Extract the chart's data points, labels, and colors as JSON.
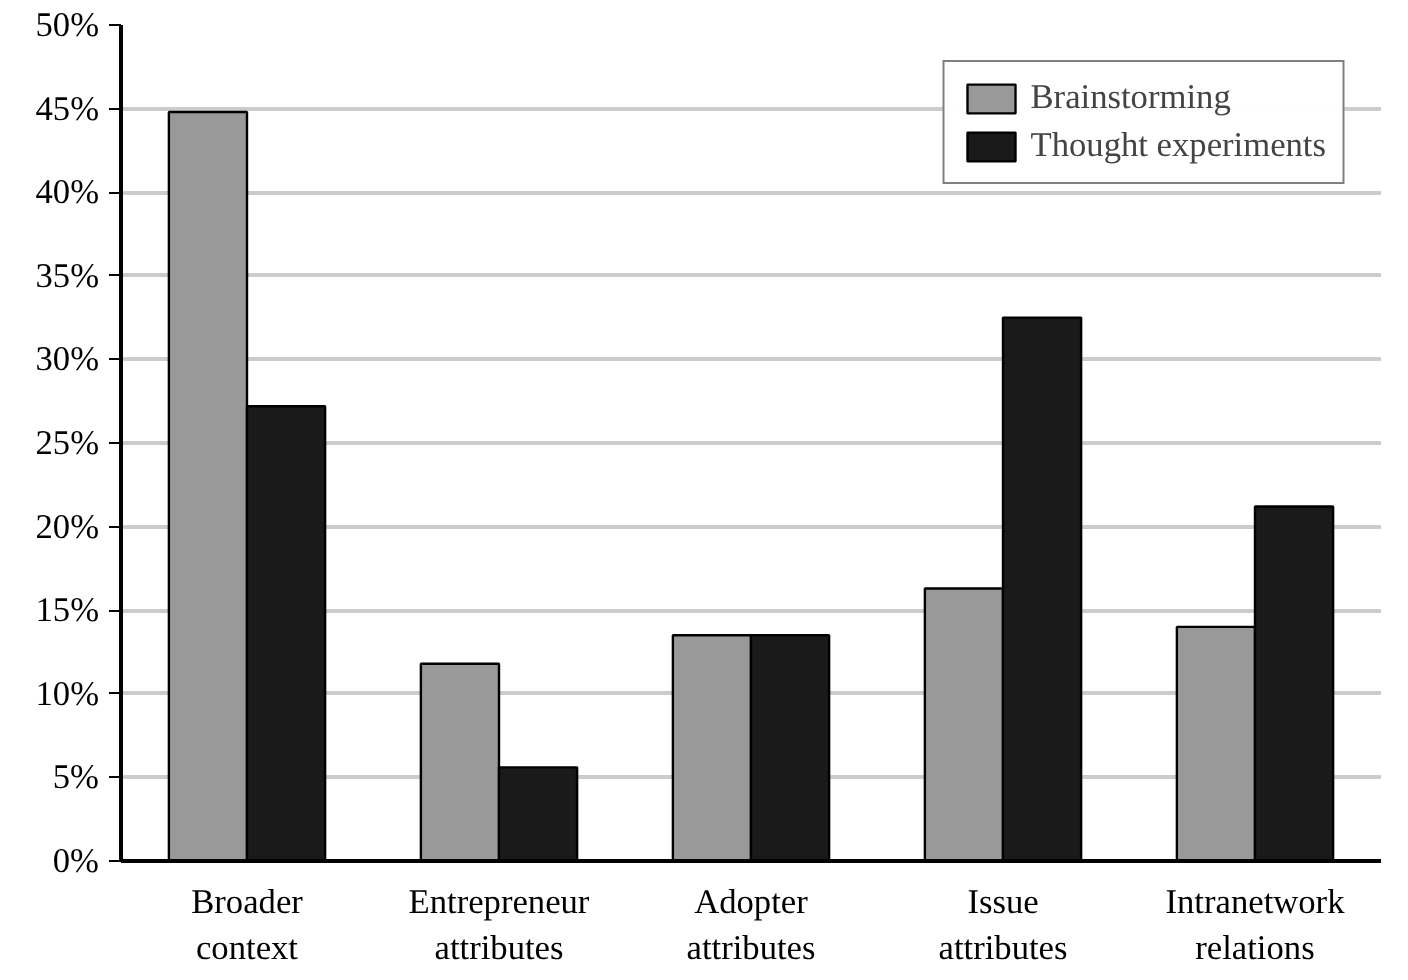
{
  "chart_data": {
    "type": "bar",
    "categories": [
      "Broader\ncontext",
      "Entrepreneur\nattributes",
      "Adopter\nattributes",
      "Issue\nattributes",
      "Intranetwork\nrelations"
    ],
    "series": [
      {
        "name": "Brainstorming",
        "color": "#999999",
        "values": [
          44.8,
          11.8,
          13.5,
          16.3,
          14.0
        ]
      },
      {
        "name": "Thought experiments",
        "color": "#1a1a1a",
        "values": [
          27.2,
          5.6,
          13.5,
          32.5,
          21.2
        ]
      }
    ],
    "ylim": [
      0,
      50
    ],
    "yticks": [
      {
        "value": 0,
        "label": "0%"
      },
      {
        "value": 5,
        "label": "5%"
      },
      {
        "value": 10,
        "label": "10%"
      },
      {
        "value": 15,
        "label": "15%"
      },
      {
        "value": 20,
        "label": "20%"
      },
      {
        "value": 25,
        "label": "25%"
      },
      {
        "value": 30,
        "label": "30%"
      },
      {
        "value": 35,
        "label": "35%"
      },
      {
        "value": 40,
        "label": "40%"
      },
      {
        "value": 45,
        "label": "45%"
      },
      {
        "value": 50,
        "label": "50%"
      }
    ],
    "grid": "y",
    "legend": "top right"
  }
}
